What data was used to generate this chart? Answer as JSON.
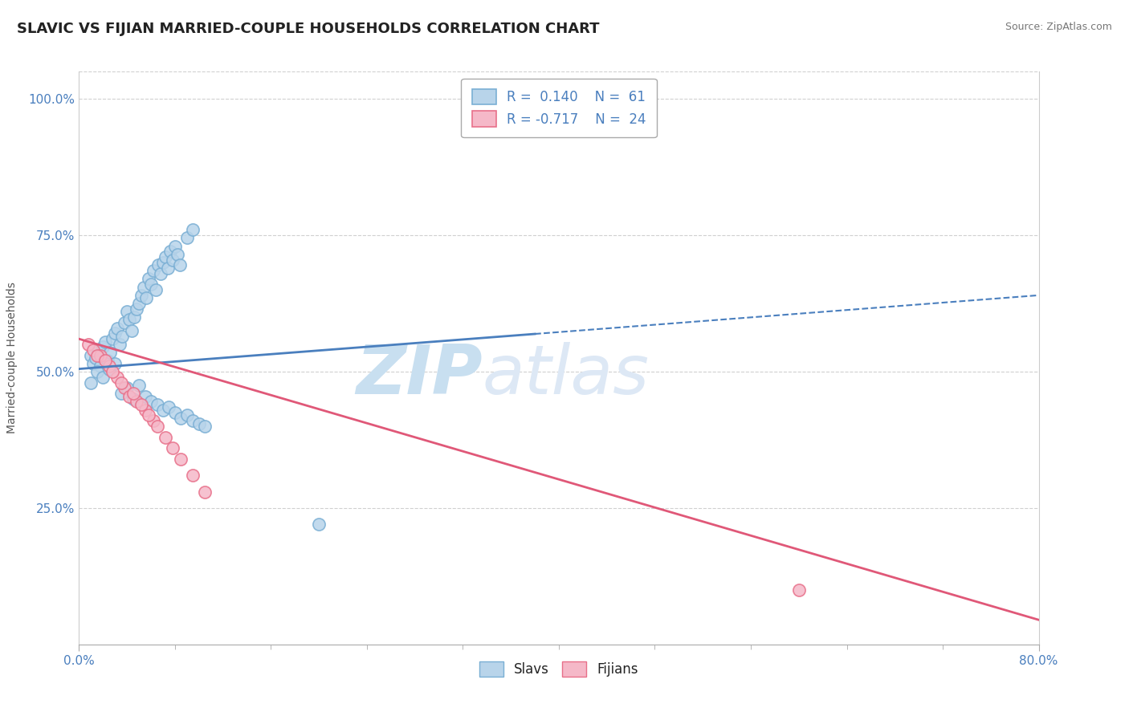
{
  "title": "SLAVIC VS FIJIAN MARRIED-COUPLE HOUSEHOLDS CORRELATION CHART",
  "source": "Source: ZipAtlas.com",
  "ylabel": "Married-couple Households",
  "ytick_labels": [
    "25.0%",
    "50.0%",
    "75.0%",
    "100.0%"
  ],
  "ytick_values": [
    0.25,
    0.5,
    0.75,
    1.0
  ],
  "xmin": 0.0,
  "xmax": 0.8,
  "ymin": 0.0,
  "ymax": 1.05,
  "slavs_color": "#b8d4ea",
  "fijians_color": "#f5b8c8",
  "slavs_edge_color": "#7aafd4",
  "fijians_edge_color": "#e8708a",
  "slavs_label": "Slavs",
  "fijians_label": "Fijians",
  "slavs_R": 0.14,
  "slavs_N": 61,
  "fijians_R": -0.717,
  "fijians_N": 24,
  "trendline_slavs_color": "#4a7fbe",
  "trendline_fijians_color": "#e05878",
  "grid_color": "#d0d0d0",
  "background_color": "#ffffff",
  "title_fontsize": 13,
  "axis_label_fontsize": 10,
  "tick_fontsize": 11,
  "legend_fontsize": 12,
  "watermark_text": "ZIPatlas",
  "watermark_color": "#d5e8f5",
  "slavs_x": [
    0.01,
    0.012,
    0.014,
    0.016,
    0.018,
    0.02,
    0.022,
    0.024,
    0.026,
    0.028,
    0.03,
    0.032,
    0.034,
    0.036,
    0.038,
    0.04,
    0.042,
    0.044,
    0.046,
    0.048,
    0.05,
    0.052,
    0.054,
    0.056,
    0.058,
    0.06,
    0.062,
    0.064,
    0.066,
    0.068,
    0.07,
    0.072,
    0.074,
    0.076,
    0.078,
    0.08,
    0.082,
    0.084,
    0.09,
    0.095,
    0.01,
    0.015,
    0.02,
    0.025,
    0.03,
    0.035,
    0.04,
    0.045,
    0.05,
    0.055,
    0.06,
    0.065,
    0.07,
    0.075,
    0.08,
    0.085,
    0.09,
    0.095,
    0.1,
    0.105,
    0.2
  ],
  "slavs_y": [
    0.53,
    0.515,
    0.525,
    0.54,
    0.51,
    0.545,
    0.555,
    0.52,
    0.535,
    0.56,
    0.57,
    0.58,
    0.55,
    0.565,
    0.59,
    0.61,
    0.595,
    0.575,
    0.6,
    0.615,
    0.625,
    0.64,
    0.655,
    0.635,
    0.67,
    0.66,
    0.685,
    0.65,
    0.695,
    0.68,
    0.7,
    0.71,
    0.69,
    0.72,
    0.705,
    0.73,
    0.715,
    0.695,
    0.745,
    0.76,
    0.48,
    0.5,
    0.49,
    0.505,
    0.515,
    0.46,
    0.47,
    0.45,
    0.475,
    0.455,
    0.445,
    0.44,
    0.43,
    0.435,
    0.425,
    0.415,
    0.42,
    0.41,
    0.405,
    0.4,
    0.22
  ],
  "fijians_x": [
    0.008,
    0.012,
    0.018,
    0.025,
    0.032,
    0.038,
    0.042,
    0.048,
    0.055,
    0.062,
    0.015,
    0.022,
    0.028,
    0.035,
    0.045,
    0.052,
    0.058,
    0.065,
    0.072,
    0.078,
    0.085,
    0.095,
    0.105,
    0.6
  ],
  "fijians_y": [
    0.55,
    0.54,
    0.53,
    0.51,
    0.49,
    0.47,
    0.455,
    0.445,
    0.43,
    0.41,
    0.53,
    0.52,
    0.5,
    0.48,
    0.46,
    0.44,
    0.42,
    0.4,
    0.38,
    0.36,
    0.34,
    0.31,
    0.28,
    0.1
  ],
  "slavs_trend_x": [
    0.0,
    0.38,
    0.8
  ],
  "slavs_trend_y_at_0": 0.505,
  "slavs_trend_y_at_038": 0.555,
  "slavs_trend_y_at_080": 0.64,
  "fijians_trend_x": [
    0.0,
    0.8
  ],
  "fijians_trend_y_at_0": 0.56,
  "fijians_trend_y_at_080": 0.045
}
